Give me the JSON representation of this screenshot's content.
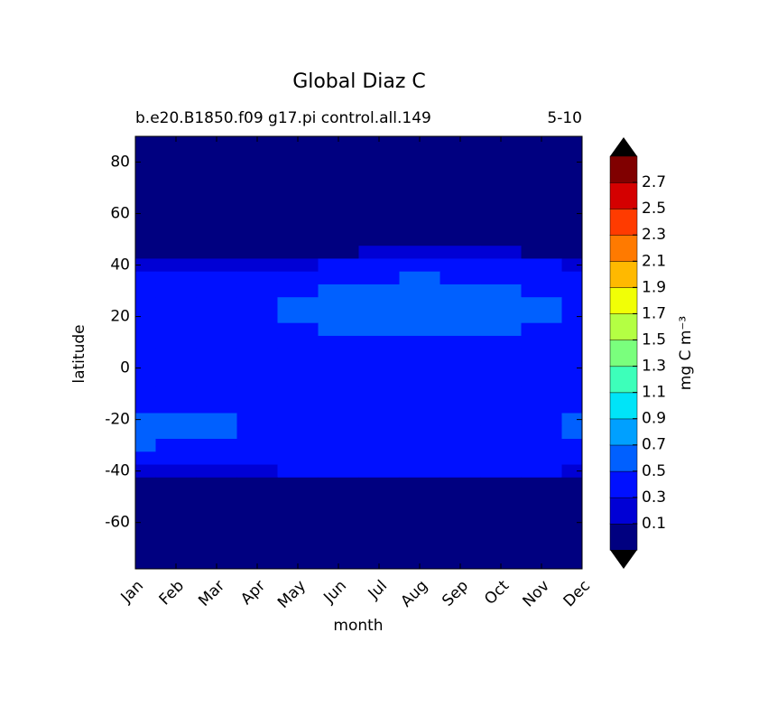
{
  "chart_data": {
    "type": "contour",
    "title": "Global Diaz C",
    "subtitle": "b.e20.B1850.f09 g17.pi control.all.149",
    "subtitle_right": "5-10",
    "x_label": "month",
    "y_label": "latitude",
    "categories": [
      "Jan",
      "Feb",
      "Mar",
      "Apr",
      "May",
      "Jun",
      "Jul",
      "Aug",
      "Sep",
      "Oct",
      "Nov",
      "Dec"
    ],
    "ylim": [
      -78,
      90
    ],
    "yticks": [
      -60,
      -40,
      -20,
      0,
      20,
      40,
      60,
      80
    ],
    "y": [
      90,
      85,
      80,
      75,
      70,
      65,
      60,
      55,
      50,
      45,
      40,
      35,
      30,
      25,
      20,
      15,
      10,
      5,
      0,
      -5,
      -10,
      -15,
      -20,
      -25,
      -30,
      -35,
      -40,
      -45,
      -50,
      -55,
      -60,
      -65,
      -70,
      -75,
      -80
    ],
    "z": [
      [
        0.05,
        0.05,
        0.05,
        0.05,
        0.05,
        0.05,
        0.05,
        0.05,
        0.05,
        0.05,
        0.05,
        0.05
      ],
      [
        0.05,
        0.05,
        0.05,
        0.05,
        0.05,
        0.05,
        0.05,
        0.05,
        0.05,
        0.05,
        0.05,
        0.05
      ],
      [
        0.05,
        0.05,
        0.05,
        0.05,
        0.05,
        0.05,
        0.05,
        0.05,
        0.05,
        0.05,
        0.05,
        0.05
      ],
      [
        0.05,
        0.05,
        0.05,
        0.05,
        0.05,
        0.05,
        0.05,
        0.05,
        0.05,
        0.05,
        0.05,
        0.05
      ],
      [
        0.05,
        0.05,
        0.05,
        0.05,
        0.05,
        0.05,
        0.05,
        0.05,
        0.05,
        0.05,
        0.05,
        0.05
      ],
      [
        0.05,
        0.05,
        0.05,
        0.05,
        0.05,
        0.05,
        0.05,
        0.05,
        0.05,
        0.05,
        0.05,
        0.05
      ],
      [
        0.05,
        0.05,
        0.05,
        0.05,
        0.05,
        0.05,
        0.05,
        0.05,
        0.05,
        0.05,
        0.05,
        0.05
      ],
      [
        0.05,
        0.05,
        0.05,
        0.05,
        0.05,
        0.05,
        0.05,
        0.05,
        0.05,
        0.05,
        0.05,
        0.05
      ],
      [
        0.05,
        0.05,
        0.05,
        0.05,
        0.05,
        0.05,
        0.05,
        0.05,
        0.05,
        0.05,
        0.05,
        0.05
      ],
      [
        0.05,
        0.05,
        0.05,
        0.05,
        0.05,
        0.05,
        0.2,
        0.2,
        0.2,
        0.2,
        0.05,
        0.05
      ],
      [
        0.2,
        0.2,
        0.2,
        0.2,
        0.2,
        0.4,
        0.4,
        0.4,
        0.4,
        0.4,
        0.4,
        0.2
      ],
      [
        0.4,
        0.4,
        0.4,
        0.4,
        0.4,
        0.4,
        0.4,
        0.6,
        0.4,
        0.4,
        0.4,
        0.4
      ],
      [
        0.4,
        0.4,
        0.4,
        0.4,
        0.4,
        0.6,
        0.6,
        0.6,
        0.6,
        0.6,
        0.4,
        0.4
      ],
      [
        0.4,
        0.4,
        0.4,
        0.4,
        0.6,
        0.6,
        0.6,
        0.6,
        0.6,
        0.6,
        0.6,
        0.4
      ],
      [
        0.4,
        0.4,
        0.4,
        0.4,
        0.6,
        0.6,
        0.6,
        0.6,
        0.6,
        0.6,
        0.6,
        0.4
      ],
      [
        0.4,
        0.4,
        0.4,
        0.4,
        0.4,
        0.6,
        0.6,
        0.6,
        0.6,
        0.6,
        0.4,
        0.4
      ],
      [
        0.4,
        0.4,
        0.4,
        0.4,
        0.4,
        0.4,
        0.4,
        0.4,
        0.4,
        0.4,
        0.4,
        0.4
      ],
      [
        0.4,
        0.4,
        0.4,
        0.4,
        0.4,
        0.4,
        0.4,
        0.4,
        0.4,
        0.4,
        0.4,
        0.4
      ],
      [
        0.4,
        0.4,
        0.4,
        0.4,
        0.4,
        0.4,
        0.4,
        0.4,
        0.4,
        0.4,
        0.4,
        0.4
      ],
      [
        0.4,
        0.4,
        0.4,
        0.4,
        0.4,
        0.4,
        0.4,
        0.4,
        0.4,
        0.4,
        0.4,
        0.4
      ],
      [
        0.4,
        0.4,
        0.4,
        0.4,
        0.4,
        0.4,
        0.4,
        0.4,
        0.4,
        0.4,
        0.4,
        0.4
      ],
      [
        0.4,
        0.4,
        0.4,
        0.4,
        0.4,
        0.4,
        0.4,
        0.4,
        0.4,
        0.4,
        0.4,
        0.4
      ],
      [
        0.6,
        0.6,
        0.6,
        0.4,
        0.4,
        0.4,
        0.4,
        0.4,
        0.4,
        0.4,
        0.4,
        0.6
      ],
      [
        0.6,
        0.6,
        0.6,
        0.4,
        0.4,
        0.4,
        0.4,
        0.4,
        0.4,
        0.4,
        0.4,
        0.6
      ],
      [
        0.6,
        0.4,
        0.4,
        0.4,
        0.4,
        0.4,
        0.4,
        0.4,
        0.4,
        0.4,
        0.4,
        0.4
      ],
      [
        0.4,
        0.4,
        0.4,
        0.4,
        0.4,
        0.4,
        0.4,
        0.4,
        0.4,
        0.4,
        0.4,
        0.4
      ],
      [
        0.2,
        0.2,
        0.2,
        0.2,
        0.4,
        0.4,
        0.4,
        0.4,
        0.4,
        0.4,
        0.4,
        0.2
      ],
      [
        0.05,
        0.05,
        0.05,
        0.05,
        0.05,
        0.05,
        0.05,
        0.05,
        0.05,
        0.05,
        0.05,
        0.05
      ],
      [
        0.05,
        0.05,
        0.05,
        0.05,
        0.05,
        0.05,
        0.05,
        0.05,
        0.05,
        0.05,
        0.05,
        0.05
      ],
      [
        0.05,
        0.05,
        0.05,
        0.05,
        0.05,
        0.05,
        0.05,
        0.05,
        0.05,
        0.05,
        0.05,
        0.05
      ],
      [
        0.05,
        0.05,
        0.05,
        0.05,
        0.05,
        0.05,
        0.05,
        0.05,
        0.05,
        0.05,
        0.05,
        0.05
      ],
      [
        0.05,
        0.05,
        0.05,
        0.05,
        0.05,
        0.05,
        0.05,
        0.05,
        0.05,
        0.05,
        0.05,
        0.05
      ],
      [
        0.05,
        0.05,
        0.05,
        0.05,
        0.05,
        0.05,
        0.05,
        0.05,
        0.05,
        0.05,
        0.05,
        0.05
      ],
      [
        0.05,
        0.05,
        0.05,
        0.05,
        0.05,
        0.05,
        0.05,
        0.05,
        0.05,
        0.05,
        0.05,
        0.05
      ],
      [
        0.05,
        0.05,
        0.05,
        0.05,
        0.05,
        0.05,
        0.05,
        0.05,
        0.05,
        0.05,
        0.05,
        0.05
      ]
    ],
    "colorbar": {
      "label": "mg C m⁻³",
      "levels": [
        0.1,
        0.3,
        0.5,
        0.7,
        0.9,
        1.1,
        1.3,
        1.5,
        1.7,
        1.9,
        2.1,
        2.3,
        2.5,
        2.7
      ],
      "colors": [
        "#000080",
        "#0000d5",
        "#0010ff",
        "#0060ff",
        "#00a0ff",
        "#00e4f8",
        "#3dffba",
        "#7aff7d",
        "#b4ff43",
        "#f1ff06",
        "#ffb900",
        "#ff7a00",
        "#ff3b00",
        "#d40000",
        "#800000"
      ],
      "extend_color": "#000000"
    }
  }
}
